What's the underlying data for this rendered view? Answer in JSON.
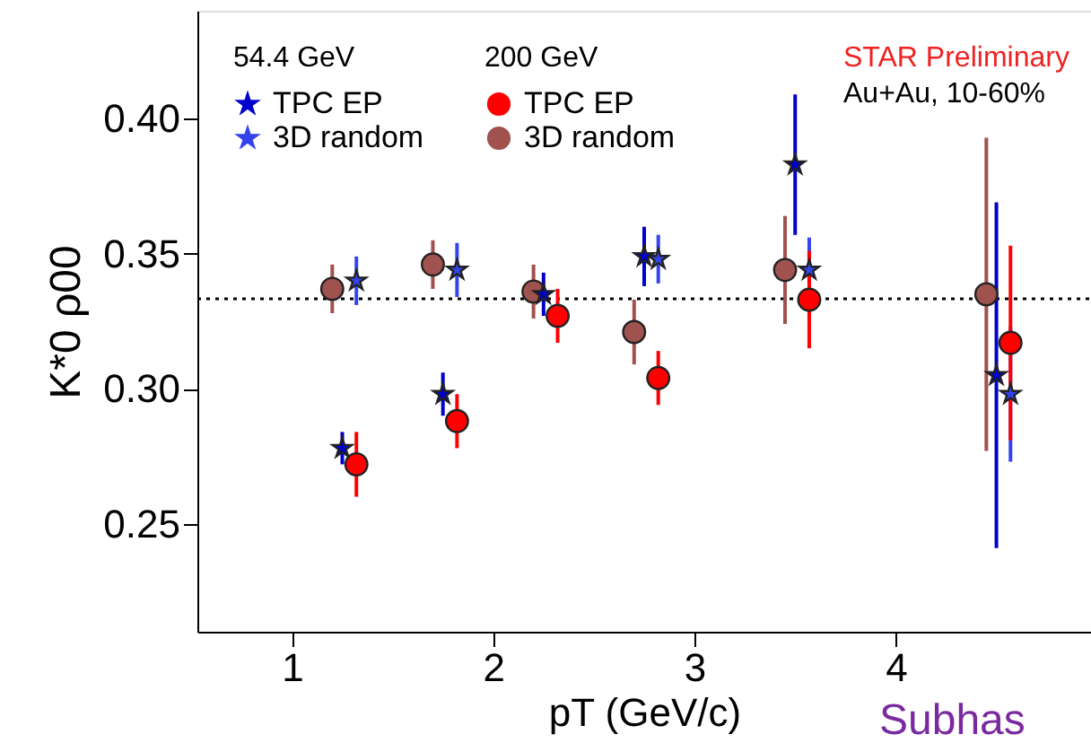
{
  "chart_data": {
    "type": "scatter",
    "xlabel": "pT (GeV/c)",
    "ylabel": "K*0 ρ00",
    "xlim": [
      0.53,
      4.97
    ],
    "xticks": [
      1,
      2,
      3,
      4
    ],
    "ylim": [
      0.21,
      0.44
    ],
    "yticks": [
      {
        "value": 0.25,
        "label": "0.25"
      },
      {
        "value": 0.3,
        "label": "0.30"
      },
      {
        "value": 0.35,
        "label": "0.35"
      },
      {
        "value": 0.4,
        "label": "0.40"
      }
    ],
    "grid": false,
    "legend": "top left",
    "series": [
      {
        "name": "TPC EP",
        "color": "#0000cc",
        "marker": "star",
        "x": [
          1.25,
          1.75,
          2.25,
          2.75,
          3.5,
          4.5
        ],
        "values": [
          0.278,
          0.298,
          0.335,
          0.349,
          0.383,
          0.305
        ],
        "errors": [
          0.006,
          0.008,
          0.008,
          0.011,
          0.026,
          0.064
        ]
      },
      {
        "name": "3D random",
        "color": "#3344ee",
        "marker": "star",
        "x": [
          1.32,
          1.82,
          2.32,
          2.82,
          3.57,
          4.57
        ],
        "values": [
          0.34,
          0.344,
          null,
          0.348,
          0.344,
          0.298
        ],
        "errors": [
          0.009,
          0.01,
          null,
          0.009,
          0.012,
          0.025
        ]
      },
      {
        "name": "TPC EP",
        "color": "#ff0000",
        "marker": "circle",
        "x": [
          1.32,
          1.82,
          2.32,
          2.82,
          3.57,
          4.57
        ],
        "values": [
          0.272,
          0.288,
          0.327,
          0.304,
          0.333,
          0.317
        ],
        "errors": [
          0.012,
          0.01,
          0.01,
          0.01,
          0.018,
          0.036
        ]
      },
      {
        "name": "3D random",
        "color": "#a0524f",
        "marker": "circle",
        "x": [
          1.2,
          1.7,
          2.2,
          2.7,
          3.45,
          4.45
        ],
        "values": [
          0.337,
          0.346,
          0.336,
          0.321,
          0.344,
          0.335
        ],
        "errors": [
          0.009,
          0.009,
          0.01,
          0.012,
          0.02,
          0.058
        ]
      }
    ],
    "ref_lines": [
      {
        "axis": "y",
        "value": 0.3333,
        "line_style": "dotted",
        "color": "#000000"
      }
    ],
    "annotations": [
      "54.4 GeV",
      "200 GeV",
      "STAR Preliminary",
      "Au+Au, 10-60%",
      "Subhas"
    ]
  }
}
